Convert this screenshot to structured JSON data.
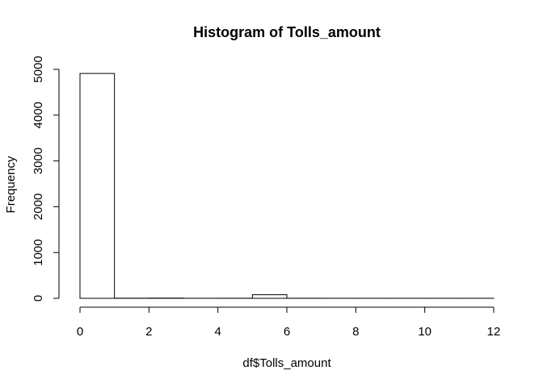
{
  "chart_data": {
    "type": "bar",
    "title": "Histogram of Tolls_amount",
    "xlabel": "df$Tolls_amount",
    "ylabel": "Frequency",
    "bins": [
      {
        "start": 0,
        "end": 1,
        "count": 4910
      },
      {
        "start": 1,
        "end": 2,
        "count": 3
      },
      {
        "start": 2,
        "end": 3,
        "count": 5
      },
      {
        "start": 3,
        "end": 4,
        "count": 1
      },
      {
        "start": 4,
        "end": 5,
        "count": 2
      },
      {
        "start": 5,
        "end": 6,
        "count": 78
      },
      {
        "start": 6,
        "end": 7,
        "count": 2
      },
      {
        "start": 7,
        "end": 8,
        "count": 1
      },
      {
        "start": 8,
        "end": 9,
        "count": 1
      },
      {
        "start": 9,
        "end": 10,
        "count": 1
      },
      {
        "start": 10,
        "end": 11,
        "count": 1
      },
      {
        "start": 11,
        "end": 12,
        "count": 1
      }
    ],
    "xlim": [
      0,
      12
    ],
    "ylim": [
      0,
      5000
    ],
    "xticks": [
      "0",
      "2",
      "4",
      "6",
      "8",
      "10",
      "12"
    ],
    "yticks": [
      "0",
      "1000",
      "2000",
      "3000",
      "4000",
      "5000"
    ],
    "grid": false,
    "colors": {
      "bar_fill": "#ffffff",
      "bar_stroke": "#000000",
      "axis": "#000000"
    }
  }
}
